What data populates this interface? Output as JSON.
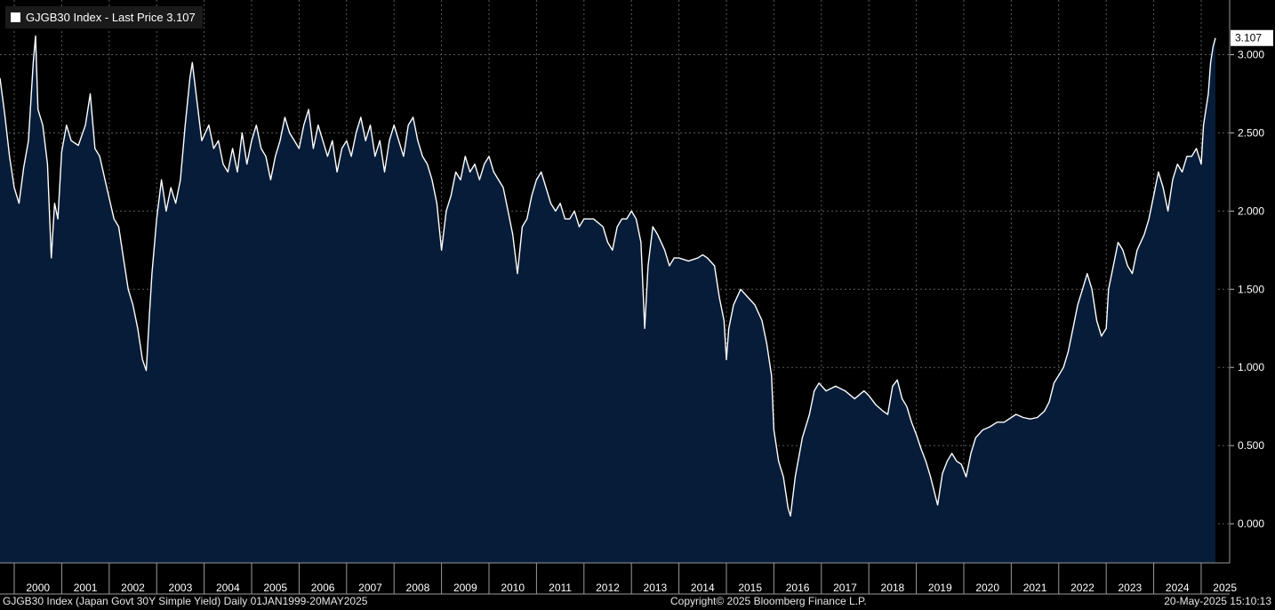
{
  "legend": {
    "text": "GJGB30 Index - Last Price 3.107"
  },
  "footer": {
    "left": "GJGB30 Index (Japan Govt 30Y Simple Yield)  Daily 01JAN1999-20MAY2025",
    "center": "Copyright© 2025 Bloomberg Finance L.P.",
    "right": "20-May-2025 15:10:13"
  },
  "colors": {
    "background": "#000000",
    "area_fill": "#061c38",
    "line": "#ffffff",
    "grid": "#5a5a5a",
    "axis": "#9a9a9a"
  },
  "chart_data": {
    "type": "area",
    "ylim": [
      -0.25,
      3.35
    ],
    "yticks": [
      0.0,
      0.5,
      1.0,
      1.5,
      2.0,
      2.5,
      3.0
    ],
    "ytick_labels": [
      "0.000",
      "0.500",
      "1.000",
      "1.500",
      "2.000",
      "2.500",
      "3.000"
    ],
    "x_start": 1999.7,
    "x_end": 2025.6,
    "xticks": [
      "2000",
      "2001",
      "2002",
      "2003",
      "2004",
      "2005",
      "2006",
      "2007",
      "2008",
      "2009",
      "2010",
      "2011",
      "2012",
      "2013",
      "2014",
      "2015",
      "2016",
      "2017",
      "2018",
      "2019",
      "2020",
      "2021",
      "2022",
      "2023",
      "2024",
      "2025"
    ],
    "grid": true,
    "last_value_label": "3.107",
    "series": [
      {
        "points": [
          [
            1999.7,
            2.85
          ],
          [
            1999.8,
            2.62
          ],
          [
            1999.9,
            2.35
          ],
          [
            2000.0,
            2.15
          ],
          [
            2000.1,
            2.05
          ],
          [
            2000.2,
            2.28
          ],
          [
            2000.3,
            2.45
          ],
          [
            2000.4,
            2.95
          ],
          [
            2000.45,
            3.12
          ],
          [
            2000.5,
            2.65
          ],
          [
            2000.6,
            2.55
          ],
          [
            2000.7,
            2.3
          ],
          [
            2000.78,
            1.7
          ],
          [
            2000.85,
            2.05
          ],
          [
            2000.92,
            1.95
          ],
          [
            2001.0,
            2.38
          ],
          [
            2001.1,
            2.55
          ],
          [
            2001.2,
            2.45
          ],
          [
            2001.35,
            2.42
          ],
          [
            2001.5,
            2.55
          ],
          [
            2001.6,
            2.75
          ],
          [
            2001.7,
            2.4
          ],
          [
            2001.8,
            2.35
          ],
          [
            2001.95,
            2.15
          ],
          [
            2002.1,
            1.95
          ],
          [
            2002.2,
            1.9
          ],
          [
            2002.3,
            1.7
          ],
          [
            2002.4,
            1.5
          ],
          [
            2002.5,
            1.4
          ],
          [
            2002.6,
            1.25
          ],
          [
            2002.7,
            1.05
          ],
          [
            2002.78,
            0.98
          ],
          [
            2002.85,
            1.35
          ],
          [
            2002.9,
            1.6
          ],
          [
            2003.0,
            1.95
          ],
          [
            2003.1,
            2.2
          ],
          [
            2003.2,
            2.0
          ],
          [
            2003.3,
            2.15
          ],
          [
            2003.4,
            2.05
          ],
          [
            2003.5,
            2.2
          ],
          [
            2003.6,
            2.55
          ],
          [
            2003.7,
            2.85
          ],
          [
            2003.75,
            2.95
          ],
          [
            2003.85,
            2.7
          ],
          [
            2003.95,
            2.45
          ],
          [
            2004.1,
            2.55
          ],
          [
            2004.2,
            2.4
          ],
          [
            2004.3,
            2.45
          ],
          [
            2004.4,
            2.3
          ],
          [
            2004.5,
            2.25
          ],
          [
            2004.6,
            2.4
          ],
          [
            2004.7,
            2.25
          ],
          [
            2004.8,
            2.5
          ],
          [
            2004.9,
            2.3
          ],
          [
            2005.0,
            2.45
          ],
          [
            2005.1,
            2.55
          ],
          [
            2005.2,
            2.4
          ],
          [
            2005.3,
            2.35
          ],
          [
            2005.4,
            2.2
          ],
          [
            2005.5,
            2.35
          ],
          [
            2005.6,
            2.45
          ],
          [
            2005.7,
            2.6
          ],
          [
            2005.8,
            2.5
          ],
          [
            2005.9,
            2.45
          ],
          [
            2006.0,
            2.4
          ],
          [
            2006.1,
            2.55
          ],
          [
            2006.2,
            2.65
          ],
          [
            2006.3,
            2.4
          ],
          [
            2006.4,
            2.55
          ],
          [
            2006.5,
            2.45
          ],
          [
            2006.6,
            2.35
          ],
          [
            2006.7,
            2.45
          ],
          [
            2006.8,
            2.25
          ],
          [
            2006.9,
            2.4
          ],
          [
            2007.0,
            2.45
          ],
          [
            2007.1,
            2.35
          ],
          [
            2007.2,
            2.5
          ],
          [
            2007.3,
            2.6
          ],
          [
            2007.4,
            2.45
          ],
          [
            2007.5,
            2.55
          ],
          [
            2007.6,
            2.35
          ],
          [
            2007.7,
            2.45
          ],
          [
            2007.8,
            2.25
          ],
          [
            2007.9,
            2.45
          ],
          [
            2008.0,
            2.55
          ],
          [
            2008.1,
            2.45
          ],
          [
            2008.2,
            2.35
          ],
          [
            2008.3,
            2.55
          ],
          [
            2008.4,
            2.6
          ],
          [
            2008.5,
            2.45
          ],
          [
            2008.6,
            2.35
          ],
          [
            2008.7,
            2.3
          ],
          [
            2008.8,
            2.2
          ],
          [
            2008.9,
            2.05
          ],
          [
            2009.0,
            1.75
          ],
          [
            2009.1,
            2.0
          ],
          [
            2009.2,
            2.1
          ],
          [
            2009.3,
            2.25
          ],
          [
            2009.4,
            2.2
          ],
          [
            2009.5,
            2.35
          ],
          [
            2009.6,
            2.25
          ],
          [
            2009.7,
            2.3
          ],
          [
            2009.8,
            2.2
          ],
          [
            2009.9,
            2.3
          ],
          [
            2010.0,
            2.35
          ],
          [
            2010.1,
            2.25
          ],
          [
            2010.2,
            2.2
          ],
          [
            2010.3,
            2.15
          ],
          [
            2010.4,
            2.0
          ],
          [
            2010.5,
            1.85
          ],
          [
            2010.6,
            1.6
          ],
          [
            2010.7,
            1.9
          ],
          [
            2010.8,
            1.95
          ],
          [
            2010.9,
            2.1
          ],
          [
            2011.0,
            2.2
          ],
          [
            2011.1,
            2.25
          ],
          [
            2011.2,
            2.15
          ],
          [
            2011.3,
            2.05
          ],
          [
            2011.4,
            2.0
          ],
          [
            2011.5,
            2.05
          ],
          [
            2011.6,
            1.95
          ],
          [
            2011.7,
            1.95
          ],
          [
            2011.8,
            2.0
          ],
          [
            2011.9,
            1.9
          ],
          [
            2012.0,
            1.95
          ],
          [
            2012.2,
            1.95
          ],
          [
            2012.4,
            1.9
          ],
          [
            2012.5,
            1.8
          ],
          [
            2012.6,
            1.75
          ],
          [
            2012.7,
            1.9
          ],
          [
            2012.8,
            1.95
          ],
          [
            2012.9,
            1.95
          ],
          [
            2013.0,
            2.0
          ],
          [
            2013.1,
            1.95
          ],
          [
            2013.2,
            1.8
          ],
          [
            2013.28,
            1.25
          ],
          [
            2013.35,
            1.65
          ],
          [
            2013.45,
            1.9
          ],
          [
            2013.55,
            1.85
          ],
          [
            2013.7,
            1.75
          ],
          [
            2013.8,
            1.65
          ],
          [
            2013.9,
            1.7
          ],
          [
            2014.0,
            1.7
          ],
          [
            2014.2,
            1.68
          ],
          [
            2014.4,
            1.7
          ],
          [
            2014.5,
            1.72
          ],
          [
            2014.6,
            1.7
          ],
          [
            2014.75,
            1.65
          ],
          [
            2014.85,
            1.45
          ],
          [
            2014.95,
            1.3
          ],
          [
            2015.0,
            1.05
          ],
          [
            2015.05,
            1.25
          ],
          [
            2015.15,
            1.4
          ],
          [
            2015.3,
            1.5
          ],
          [
            2015.45,
            1.45
          ],
          [
            2015.6,
            1.4
          ],
          [
            2015.75,
            1.3
          ],
          [
            2015.85,
            1.15
          ],
          [
            2015.95,
            0.95
          ],
          [
            2016.0,
            0.6
          ],
          [
            2016.1,
            0.4
          ],
          [
            2016.2,
            0.3
          ],
          [
            2016.3,
            0.1
          ],
          [
            2016.35,
            0.05
          ],
          [
            2016.45,
            0.3
          ],
          [
            2016.6,
            0.55
          ],
          [
            2016.75,
            0.7
          ],
          [
            2016.85,
            0.85
          ],
          [
            2016.95,
            0.9
          ],
          [
            2017.1,
            0.85
          ],
          [
            2017.3,
            0.88
          ],
          [
            2017.5,
            0.85
          ],
          [
            2017.7,
            0.8
          ],
          [
            2017.9,
            0.85
          ],
          [
            2018.0,
            0.82
          ],
          [
            2018.15,
            0.76
          ],
          [
            2018.3,
            0.72
          ],
          [
            2018.4,
            0.7
          ],
          [
            2018.5,
            0.88
          ],
          [
            2018.6,
            0.92
          ],
          [
            2018.7,
            0.8
          ],
          [
            2018.8,
            0.75
          ],
          [
            2018.9,
            0.65
          ],
          [
            2019.0,
            0.57
          ],
          [
            2019.1,
            0.48
          ],
          [
            2019.2,
            0.4
          ],
          [
            2019.3,
            0.3
          ],
          [
            2019.4,
            0.18
          ],
          [
            2019.45,
            0.12
          ],
          [
            2019.55,
            0.32
          ],
          [
            2019.65,
            0.4
          ],
          [
            2019.75,
            0.45
          ],
          [
            2019.85,
            0.4
          ],
          [
            2019.95,
            0.38
          ],
          [
            2020.05,
            0.3
          ],
          [
            2020.15,
            0.45
          ],
          [
            2020.25,
            0.55
          ],
          [
            2020.4,
            0.6
          ],
          [
            2020.55,
            0.62
          ],
          [
            2020.7,
            0.65
          ],
          [
            2020.85,
            0.65
          ],
          [
            2021.0,
            0.68
          ],
          [
            2021.1,
            0.7
          ],
          [
            2021.25,
            0.68
          ],
          [
            2021.4,
            0.67
          ],
          [
            2021.55,
            0.68
          ],
          [
            2021.7,
            0.72
          ],
          [
            2021.8,
            0.78
          ],
          [
            2021.9,
            0.9
          ],
          [
            2022.0,
            0.95
          ],
          [
            2022.1,
            1.0
          ],
          [
            2022.2,
            1.1
          ],
          [
            2022.3,
            1.25
          ],
          [
            2022.4,
            1.4
          ],
          [
            2022.5,
            1.5
          ],
          [
            2022.6,
            1.6
          ],
          [
            2022.7,
            1.5
          ],
          [
            2022.8,
            1.3
          ],
          [
            2022.9,
            1.2
          ],
          [
            2023.0,
            1.25
          ],
          [
            2023.05,
            1.5
          ],
          [
            2023.15,
            1.65
          ],
          [
            2023.25,
            1.8
          ],
          [
            2023.35,
            1.75
          ],
          [
            2023.45,
            1.65
          ],
          [
            2023.55,
            1.6
          ],
          [
            2023.65,
            1.75
          ],
          [
            2023.8,
            1.85
          ],
          [
            2023.9,
            1.95
          ],
          [
            2024.0,
            2.1
          ],
          [
            2024.1,
            2.25
          ],
          [
            2024.2,
            2.15
          ],
          [
            2024.3,
            2.0
          ],
          [
            2024.4,
            2.2
          ],
          [
            2024.5,
            2.3
          ],
          [
            2024.6,
            2.25
          ],
          [
            2024.7,
            2.35
          ],
          [
            2024.8,
            2.35
          ],
          [
            2024.9,
            2.4
          ],
          [
            2025.0,
            2.3
          ],
          [
            2025.05,
            2.55
          ],
          [
            2025.1,
            2.65
          ],
          [
            2025.15,
            2.75
          ],
          [
            2025.2,
            2.95
          ],
          [
            2025.25,
            3.05
          ],
          [
            2025.3,
            3.107
          ]
        ]
      }
    ]
  }
}
